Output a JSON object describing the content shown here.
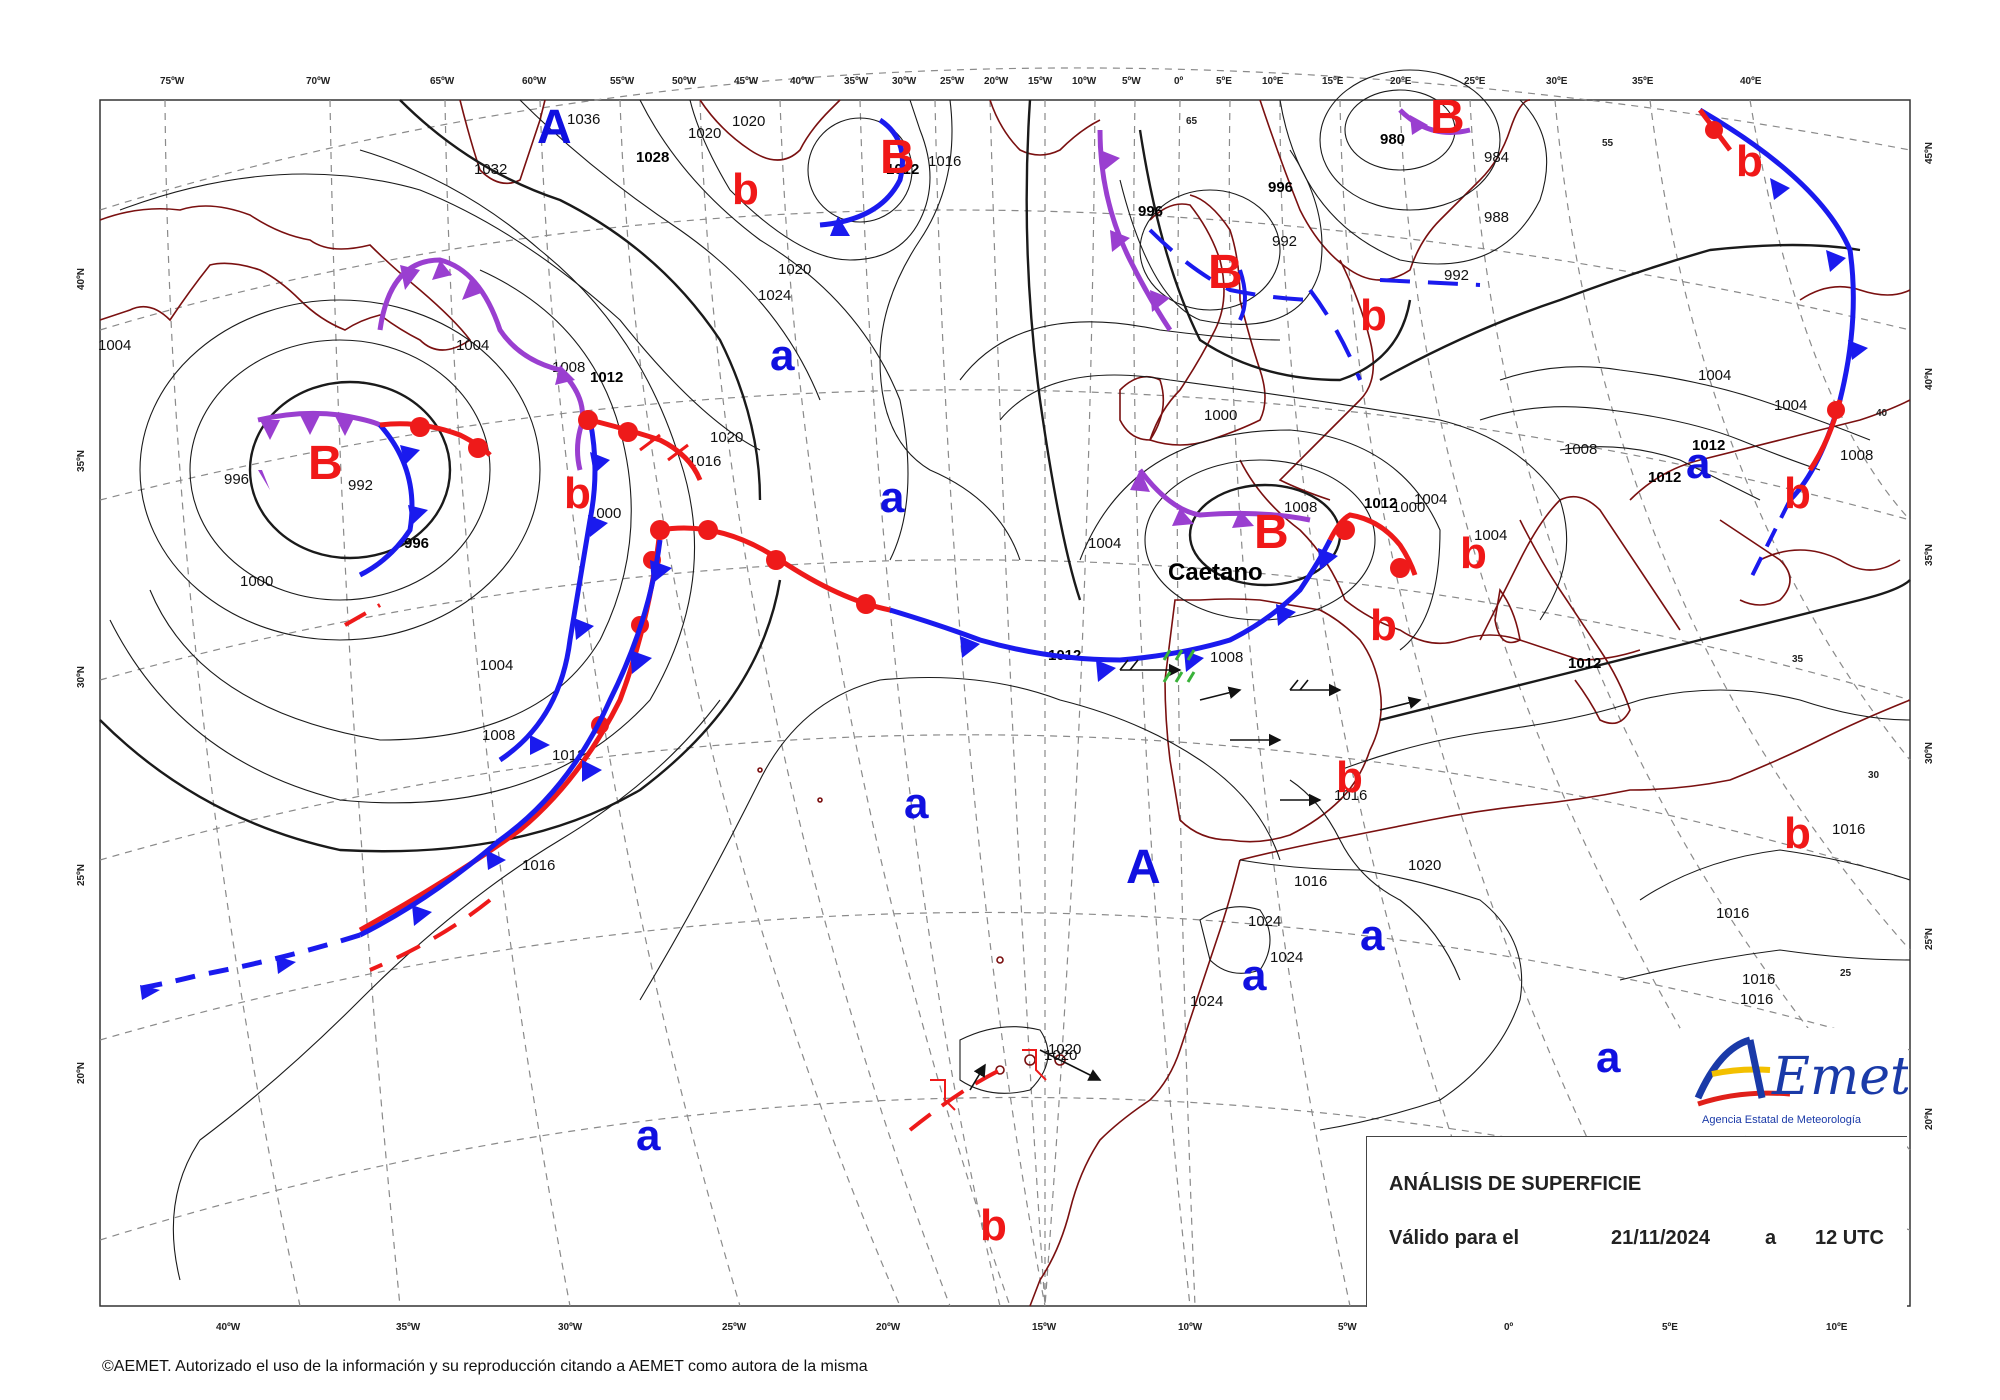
{
  "map": {
    "title": "ANÁLISIS DE SUPERFICIE",
    "valid_label": "Válido para el",
    "date": "21/11/2024",
    "connector": "a",
    "time": "12 UTC"
  },
  "top_longitudes": [
    "75ºW",
    "70ºW",
    "65ºW",
    "60ºW",
    "55ºW",
    "50ºW",
    "45ºW",
    "40ºW",
    "35ºW",
    "30ºW",
    "25ºW",
    "20ºW",
    "15ºW",
    "10ºW",
    "5ºW",
    "0º",
    "5ºE",
    "10ºE",
    "15ºE",
    "20ºE",
    "25ºE",
    "30ºE",
    "35ºE",
    "40ºE"
  ],
  "bottom_longitudes": [
    "40ºW",
    "35ºW",
    "30ºW",
    "25ºW",
    "20ºW",
    "15ºW",
    "10ºW",
    "5ºW",
    "0º",
    "5ºE",
    "10ºE"
  ],
  "left_latitudes": [
    "40ºN",
    "35ºN",
    "30ºN",
    "25ºN",
    "20ºN"
  ],
  "right_latitudes": [
    "45ºN",
    "40ºN",
    "35ºN",
    "30ºN",
    "25ºN",
    "20ºN"
  ],
  "pressure_centers": [
    {
      "kind": "A",
      "label": "A"
    },
    {
      "kind": "A",
      "label": "A"
    },
    {
      "kind": "B",
      "label": "B"
    },
    {
      "kind": "B",
      "label": "B"
    },
    {
      "kind": "B",
      "label": "B"
    },
    {
      "kind": "B",
      "label": "B"
    },
    {
      "kind": "B",
      "label": "B"
    }
  ],
  "relative_centers": {
    "high": "a",
    "low": "b"
  },
  "storm_name": "Caetano",
  "isobar_values": [
    "1036",
    "1028",
    "1032",
    "1020",
    "1020",
    "1012",
    "1016",
    "1020",
    "1024",
    "1004",
    "1004",
    "1008",
    "1012",
    "1016",
    "1020",
    "1000",
    "996",
    "992",
    "996",
    "1000",
    "1004",
    "1008",
    "1012",
    "1016",
    "1020",
    "1024",
    "1024",
    "1024",
    "996",
    "996",
    "992",
    "1000",
    "1004",
    "1008",
    "1012",
    "1016",
    "1004",
    "1000",
    "1004",
    "1008",
    "1012",
    "1016",
    "1020",
    "1020",
    "980",
    "984",
    "988",
    "992",
    "1004",
    "1008",
    "1012",
    "1012",
    "1016",
    "1016",
    "1016",
    "1016",
    "1008",
    "1012",
    "1004"
  ],
  "isotherm_values": [
    "65",
    "55",
    "40",
    "35",
    "30",
    "25"
  ],
  "colors": {
    "cold_front": "#1a1aee",
    "warm_front": "#ee1a1a",
    "occluded_front": "#9a3fd0",
    "coastline": "#7a1010",
    "isobar": "#222222",
    "grid": "#888888",
    "high_center": "#1010e0",
    "low_center": "#f01818"
  },
  "logo": {
    "brand": "AEmet",
    "subtitle": "Agencia Estatal de Meteorología"
  },
  "copyright": "©AEMET. Autorizado el uso de la información y su reproducción citando a AEMET como autora de la misma"
}
